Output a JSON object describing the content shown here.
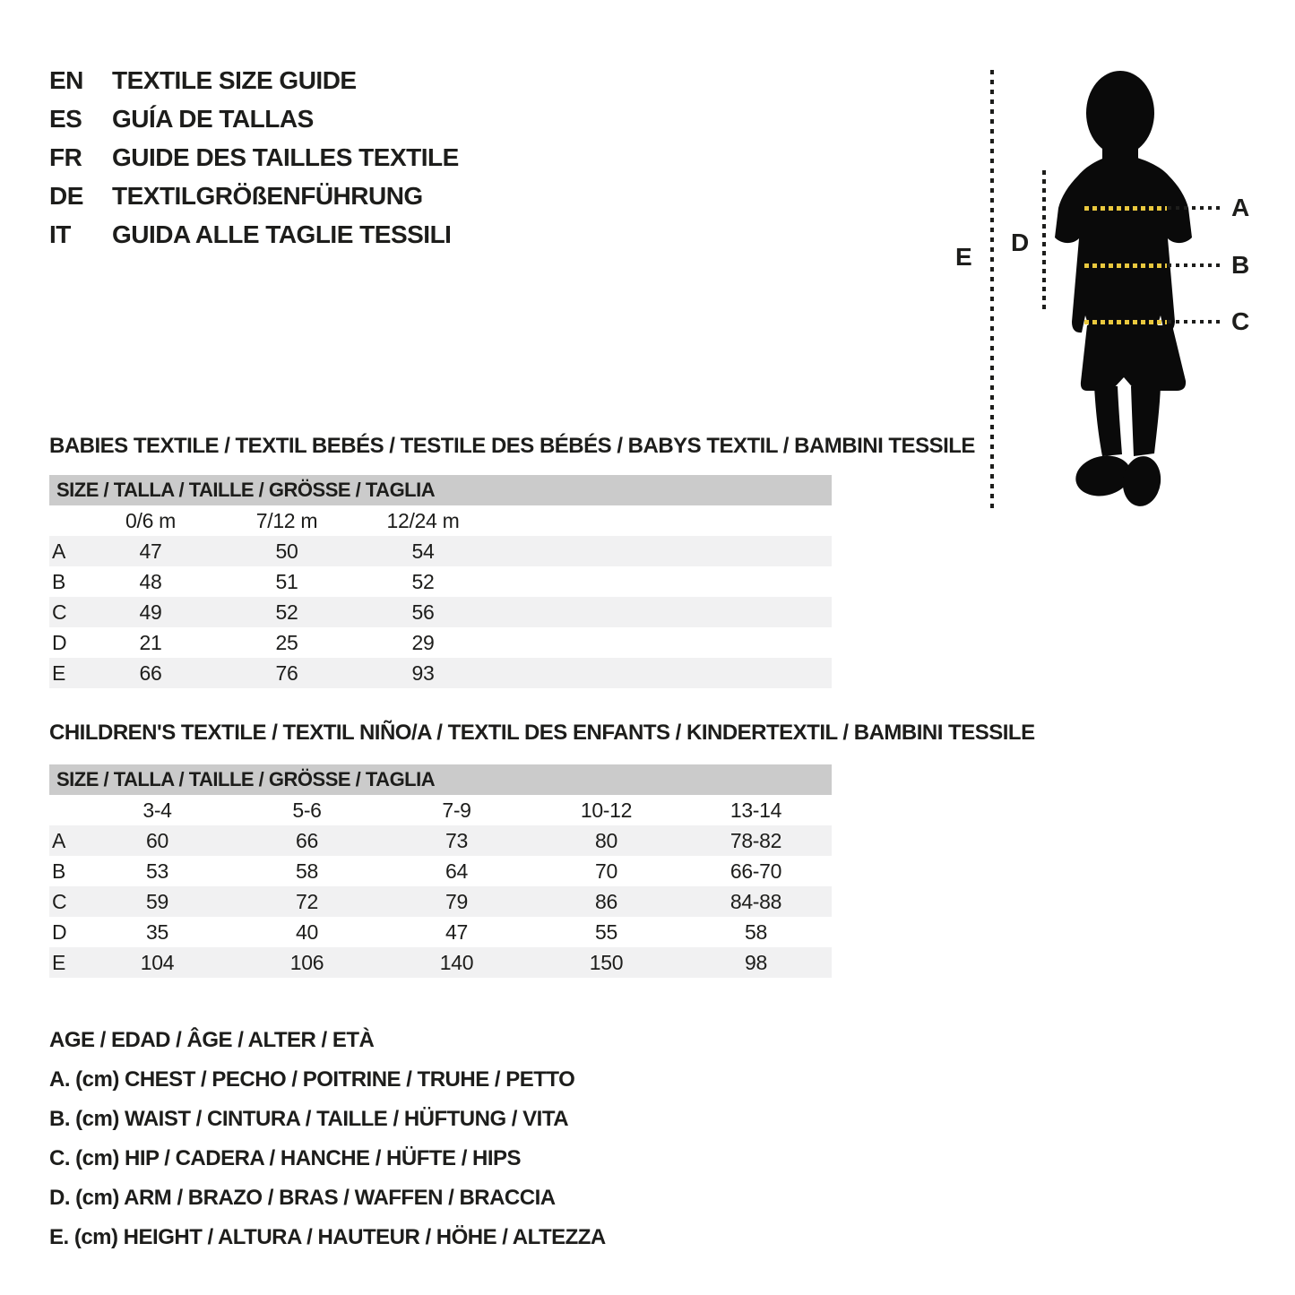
{
  "header": {
    "languages": [
      {
        "code": "EN",
        "title": "TEXTILE SIZE GUIDE"
      },
      {
        "code": "ES",
        "title": "GUÍA DE TALLAS"
      },
      {
        "code": "FR",
        "title": "GUIDE DES TAILLES TEXTILE"
      },
      {
        "code": "DE",
        "title": "TEXTILGRÖßENFÜHRUNG"
      },
      {
        "code": "IT",
        "title": "GUIDA ALLE TAGLIE TESSILI"
      }
    ]
  },
  "figure": {
    "measure_labels": {
      "a": "A",
      "b": "B",
      "c": "C",
      "d": "D",
      "e": "E"
    },
    "colors": {
      "silhouette": "#0a0a0a",
      "measure_dash_yellow": "#e9c83e",
      "dotted_black": "#1d1d1b"
    }
  },
  "babies_table": {
    "title": "BABIES TEXTILE / TEXTIL BEBÉS / TESTILE DES BÉBÉS / BABYS TEXTIL / BAMBINI TESSILE",
    "size_header": "SIZE / TALLA / TAILLE / GRÖSSE / TAGLIA",
    "columns": [
      "0/6 m",
      "7/12 m",
      "12/24 m"
    ],
    "rows": [
      {
        "label": "A",
        "values": [
          "47",
          "50",
          "54"
        ]
      },
      {
        "label": "B",
        "values": [
          "48",
          "51",
          "52"
        ]
      },
      {
        "label": "C",
        "values": [
          "49",
          "52",
          "56"
        ]
      },
      {
        "label": "D",
        "values": [
          "21",
          "25",
          "29"
        ]
      },
      {
        "label": "E",
        "values": [
          "66",
          "76",
          "93"
        ]
      }
    ]
  },
  "children_table": {
    "title": "CHILDREN'S TEXTILE / TEXTIL NIÑO/A / TEXTIL DES ENFANTS / KINDERTEXTIL / BAMBINI TESSILE",
    "size_header": "SIZE / TALLA / TAILLE / GRÖSSE / TAGLIA",
    "columns": [
      "3-4",
      "5-6",
      "7-9",
      "10-12",
      "13-14"
    ],
    "rows": [
      {
        "label": "A",
        "values": [
          "60",
          "66",
          "73",
          "80",
          "78-82"
        ]
      },
      {
        "label": "B",
        "values": [
          "53",
          "58",
          "64",
          "70",
          "66-70"
        ]
      },
      {
        "label": "C",
        "values": [
          "59",
          "72",
          "79",
          "86",
          "84-88"
        ]
      },
      {
        "label": "D",
        "values": [
          "35",
          "40",
          "47",
          "55",
          "58"
        ]
      },
      {
        "label": "E",
        "values": [
          "104",
          "106",
          "140",
          "150",
          "98"
        ]
      }
    ]
  },
  "legend": {
    "lines": [
      "AGE / EDAD / ÂGE / ALTER / ETÀ",
      "A. (cm) CHEST / PECHO / POITRINE / TRUHE / PETTO",
      "B. (cm) WAIST / CINTURA / TAILLE / HÜFTUNG / VITA",
      "C. (cm) HIP / CADERA / HANCHE / HÜFTE / HIPS",
      "D. (cm) ARM / BRAZO / BRAS / WAFFEN / BRACCIA",
      "E. (cm) HEIGHT / ALTURA / HAUTEUR / HÖHE / ALTEZZA"
    ]
  }
}
